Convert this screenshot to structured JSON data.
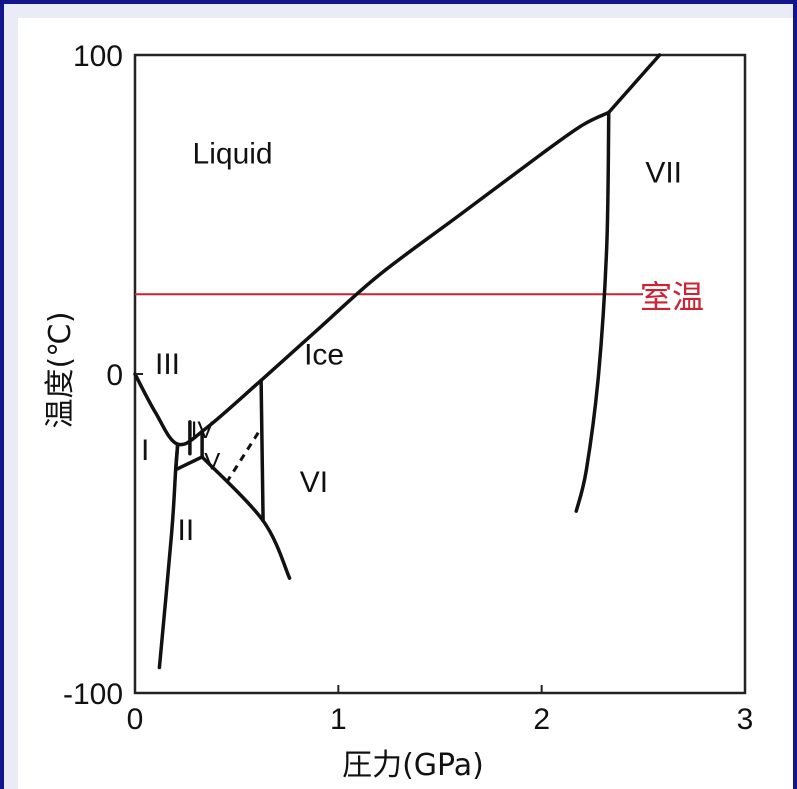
{
  "chart_data": {
    "type": "line",
    "title": "",
    "xlabel": "圧力(GPa)",
    "ylabel": "温度(℃)",
    "xlim": [
      0,
      3
    ],
    "ylim": [
      -100,
      100
    ],
    "x_ticks": [
      "0",
      "1",
      "2",
      "3"
    ],
    "y_ticks": [
      "-100",
      "0",
      "100"
    ],
    "reference_line": {
      "label": "室温",
      "y": 25,
      "x_range": [
        0,
        2.4
      ],
      "color": "#cc2233"
    },
    "region_labels": [
      {
        "text": "Liquid",
        "x": 0.48,
        "y": 66
      },
      {
        "text": "Ice",
        "x": 0.93,
        "y": 3
      },
      {
        "text": "VII",
        "x": 2.6,
        "y": 60
      },
      {
        "text": "VI",
        "x": 0.88,
        "y": -37
      },
      {
        "text": "III",
        "x": 0.16,
        "y": 0
      },
      {
        "text": "I",
        "x": 0.05,
        "y": -27
      },
      {
        "text": "II",
        "x": 0.25,
        "y": -52
      },
      {
        "text": "IV",
        "x": 0.33,
        "y": -20
      },
      {
        "text": "V",
        "x": 0.38,
        "y": -30
      }
    ],
    "series": [
      {
        "values": [
          [
            0.0,
            0
          ],
          [
            0.1,
            -12
          ],
          [
            0.21,
            -22
          ],
          [
            0.35,
            -17
          ],
          [
            0.62,
            -2
          ],
          [
            0.9,
            14
          ],
          [
            1.2,
            31
          ],
          [
            1.6,
            50
          ],
          [
            2.0,
            69
          ],
          [
            2.2,
            78
          ],
          [
            2.33,
            82
          ]
        ]
      },
      {
        "values": [
          [
            2.33,
            82
          ],
          [
            2.58,
            100
          ]
        ]
      },
      {
        "values": [
          [
            2.33,
            82
          ],
          [
            2.32,
            40
          ],
          [
            2.28,
            0
          ],
          [
            2.22,
            -30
          ],
          [
            2.17,
            -43
          ]
        ]
      },
      {
        "values": [
          [
            0.21,
            -22
          ],
          [
            0.2,
            -30
          ],
          [
            0.18,
            -50
          ],
          [
            0.12,
            -92
          ]
        ]
      },
      {
        "values": [
          [
            0.21,
            -22
          ],
          [
            0.2,
            -30
          ]
        ]
      },
      {
        "values": [
          [
            0.2,
            -30
          ],
          [
            0.33,
            -26
          ]
        ]
      },
      {
        "values": [
          [
            0.33,
            -26
          ],
          [
            0.33,
            -18
          ]
        ]
      },
      {
        "values": [
          [
            0.33,
            -26
          ],
          [
            0.63,
            -46
          ],
          [
            0.76,
            -64
          ]
        ]
      },
      {
        "values": [
          [
            0.62,
            -2
          ],
          [
            0.63,
            -46
          ]
        ]
      },
      {
        "values": [
          [
            0.27,
            -15
          ],
          [
            0.27,
            -25
          ]
        ]
      },
      {
        "values": [
          [
            0.45,
            -34
          ],
          [
            0.62,
            -17
          ]
        ],
        "style": "dashed"
      }
    ]
  }
}
